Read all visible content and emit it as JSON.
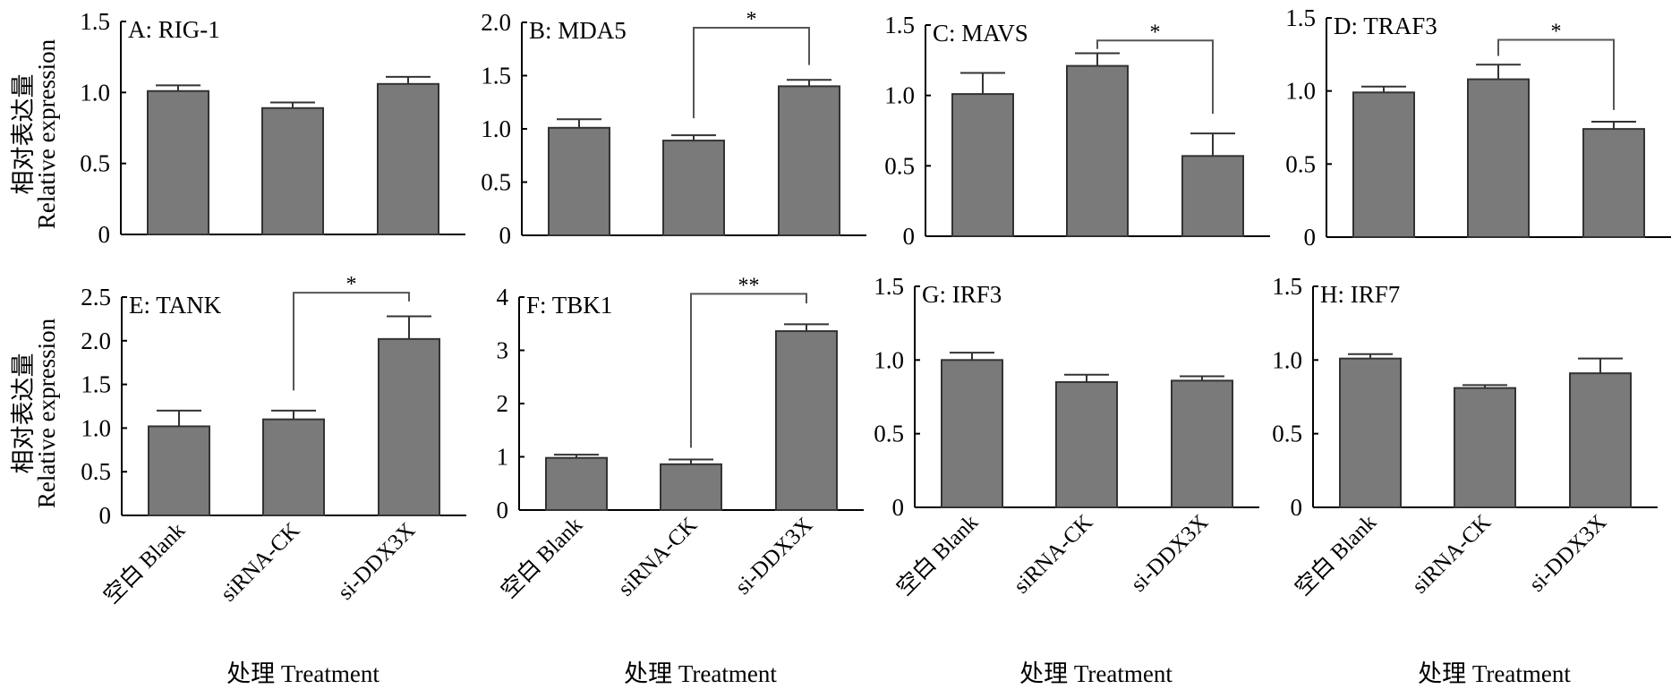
{
  "figure": {
    "y_title_cn": "相对表达量",
    "y_title_en": "Relative expression",
    "x_title": "处理 Treatment",
    "bar_fill": "#7a7a7a",
    "bar_stroke": "#333333",
    "bracket_color": "#555555"
  },
  "chart_data": [
    {
      "type": "bar",
      "title": "A: RIG-1",
      "categories": [
        "空白 Blank",
        "siRNA-CK",
        "si-DDX3X"
      ],
      "values": [
        1.01,
        0.89,
        1.06
      ],
      "error_upper": [
        1.05,
        0.93,
        1.11
      ],
      "ylim": [
        0,
        1.5
      ],
      "yticks": [
        "0",
        "0.5",
        "1.0",
        "1.5"
      ],
      "ytick_values": [
        0,
        0.5,
        1.0,
        1.5
      ],
      "xlabel": "",
      "ylabel": "相对表达量 Relative expression",
      "grid": false,
      "significance": []
    },
    {
      "type": "bar",
      "title": "B: MDA5",
      "categories": [
        "空白 Blank",
        "siRNA-CK",
        "si-DDX3X"
      ],
      "values": [
        1.01,
        0.89,
        1.4
      ],
      "error_upper": [
        1.09,
        0.94,
        1.46
      ],
      "ylim": [
        0,
        2.0
      ],
      "yticks": [
        "0",
        "0.5",
        "1.0",
        "1.5",
        "2.0"
      ],
      "ytick_values": [
        0,
        0.5,
        1.0,
        1.5,
        2.0
      ],
      "xlabel": "",
      "ylabel": "",
      "grid": false,
      "significance": [
        {
          "from": 1,
          "to": 2,
          "label": "*",
          "level": 1.95,
          "left_end": 1.1,
          "right_end": 1.6
        }
      ]
    },
    {
      "type": "bar",
      "title": "C: MAVS",
      "categories": [
        "空白 Blank",
        "siRNA-CK",
        "si-DDX3X"
      ],
      "values": [
        1.01,
        1.21,
        0.57
      ],
      "error_upper": [
        1.16,
        1.3,
        0.73
      ],
      "ylim": [
        0,
        1.5
      ],
      "yticks": [
        "0",
        "0.5",
        "1.0",
        "1.5"
      ],
      "ytick_values": [
        0,
        0.5,
        1.0,
        1.5
      ],
      "xlabel": "",
      "ylabel": "",
      "grid": false,
      "significance": [
        {
          "from": 1,
          "to": 2,
          "label": "*",
          "level": 1.39,
          "left_end": 1.33,
          "right_end": 0.87
        }
      ]
    },
    {
      "type": "bar",
      "title": "D: TRAF3",
      "categories": [
        "空白 Blank",
        "siRNA-CK",
        "si-DDX3X"
      ],
      "values": [
        0.99,
        1.08,
        0.74
      ],
      "error_upper": [
        1.03,
        1.18,
        0.79
      ],
      "ylim": [
        0,
        1.5
      ],
      "yticks": [
        "0",
        "0.5",
        "1.0",
        "1.5"
      ],
      "ytick_values": [
        0,
        0.5,
        1.0,
        1.5
      ],
      "xlabel": "",
      "ylabel": "",
      "grid": false,
      "significance": [
        {
          "from": 1,
          "to": 2,
          "label": "*",
          "level": 1.35,
          "left_end": 1.24,
          "right_end": 0.87
        }
      ]
    },
    {
      "type": "bar",
      "title": "E: TANK",
      "categories": [
        "空白 Blank",
        "siRNA-CK",
        "si-DDX3X"
      ],
      "values": [
        1.02,
        1.1,
        2.02
      ],
      "error_upper": [
        1.2,
        1.2,
        2.28
      ],
      "ylim": [
        0,
        2.5
      ],
      "yticks": [
        "0",
        "0.5",
        "1.0",
        "1.5",
        "2.0",
        "2.5"
      ],
      "ytick_values": [
        0,
        0.5,
        1.0,
        1.5,
        2.0,
        2.5
      ],
      "xlabel": "处理 Treatment",
      "ylabel": "相对表达量 Relative expression",
      "grid": false,
      "significance": [
        {
          "from": 1,
          "to": 2,
          "label": "*",
          "level": 2.55,
          "left_end": 1.43,
          "right_end": 2.45
        }
      ]
    },
    {
      "type": "bar",
      "title": "F: TBK1",
      "categories": [
        "空白 Blank",
        "siRNA-CK",
        "si-DDX3X"
      ],
      "values": [
        0.98,
        0.86,
        3.36
      ],
      "error_upper": [
        1.04,
        0.95,
        3.49
      ],
      "ylim": [
        0,
        4
      ],
      "yticks": [
        "0",
        "1",
        "2",
        "3",
        "4"
      ],
      "ytick_values": [
        0,
        1,
        2,
        3,
        4
      ],
      "xlabel": "处理 Treatment",
      "ylabel": "",
      "grid": false,
      "significance": [
        {
          "from": 1,
          "to": 2,
          "label": "**",
          "level": 4.06,
          "left_end": 1.17,
          "right_end": 3.88
        }
      ]
    },
    {
      "type": "bar",
      "title": "G: IRF3",
      "categories": [
        "空白 Blank",
        "siRNA-CK",
        "si-DDX3X"
      ],
      "values": [
        1.0,
        0.85,
        0.86
      ],
      "error_upper": [
        1.05,
        0.9,
        0.89
      ],
      "ylim": [
        0,
        1.5
      ],
      "yticks": [
        "0",
        "0.5",
        "1.0",
        "1.5"
      ],
      "ytick_values": [
        0,
        0.5,
        1.0,
        1.5
      ],
      "xlabel": "处理 Treatment",
      "ylabel": "",
      "grid": false,
      "significance": []
    },
    {
      "type": "bar",
      "title": "H: IRF7",
      "categories": [
        "空白 Blank",
        "siRNA-CK",
        "si-DDX3X"
      ],
      "values": [
        1.01,
        0.81,
        0.91
      ],
      "error_upper": [
        1.04,
        0.83,
        1.01
      ],
      "ylim": [
        0,
        1.5
      ],
      "yticks": [
        "0",
        "0.5",
        "1.0",
        "1.5"
      ],
      "ytick_values": [
        0,
        0.5,
        1.0,
        1.5
      ],
      "xlabel": "处理 Treatment",
      "ylabel": "",
      "grid": false,
      "significance": []
    }
  ]
}
